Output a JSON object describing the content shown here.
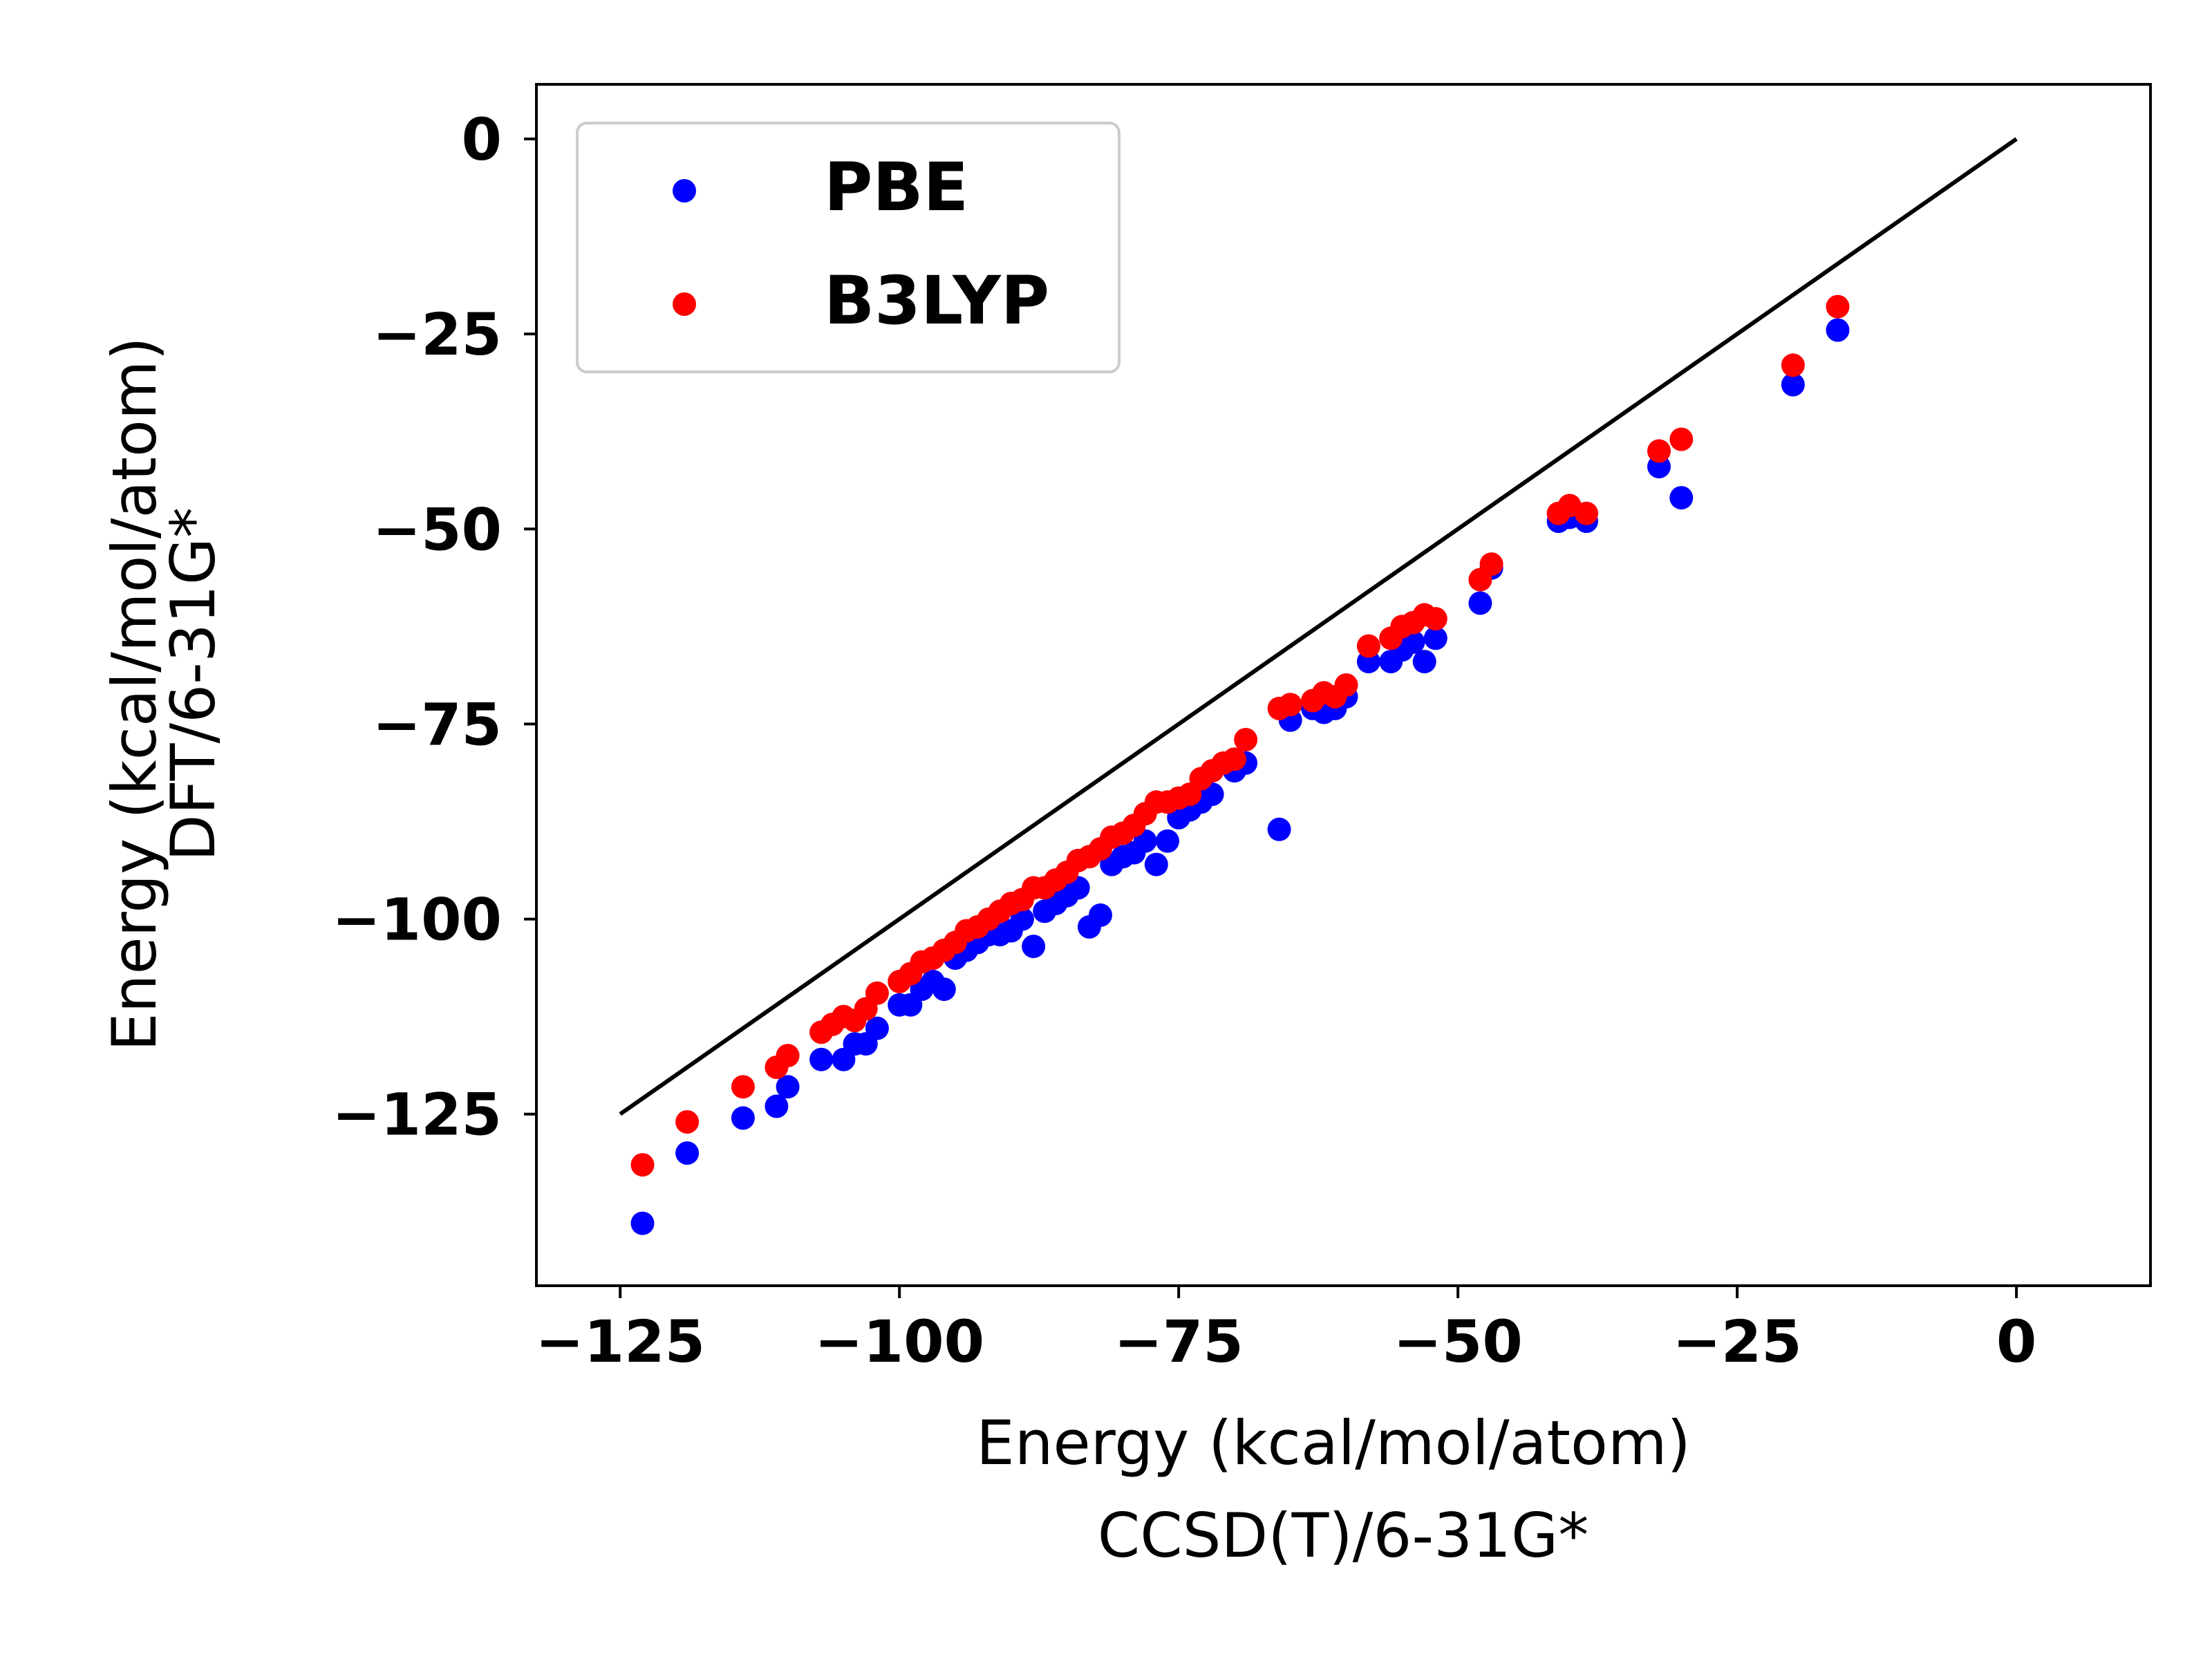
{
  "chart_data": {
    "type": "scatter",
    "xlabel_lines": [
      "Energy (kcal/mol/atom)",
      "CCSD(T)/6-31G*"
    ],
    "ylabel_lines": [
      "Energy (kcal/mol/atom)",
      "DFT/6-31G*"
    ],
    "xlim": [
      -132.5,
      12
    ],
    "ylim": [
      -147,
      7
    ],
    "xticks": [
      -125,
      -100,
      -75,
      -50,
      -25,
      0
    ],
    "yticks": [
      0,
      -25,
      -50,
      -75,
      -100,
      -125
    ],
    "xtick_labels": [
      "−125",
      "−100",
      "−75",
      "−50",
      "−25",
      "0"
    ],
    "ytick_labels": [
      "0",
      "−25",
      "−50",
      "−75",
      "−100",
      "−125"
    ],
    "legend_position": "upper-left",
    "reference_line": {
      "x": [
        -125,
        0
      ],
      "y": [
        -125,
        0
      ],
      "color": "#000000"
    },
    "series": [
      {
        "name": "PBE",
        "color": "#0000ff",
        "points": [
          [
            -123,
            -139
          ],
          [
            -119,
            -130
          ],
          [
            -114,
            -125.5
          ],
          [
            -111,
            -124
          ],
          [
            -110,
            -121.5
          ],
          [
            -107,
            -118
          ],
          [
            -105,
            -118
          ],
          [
            -104,
            -116
          ],
          [
            -103,
            -116
          ],
          [
            -102,
            -114
          ],
          [
            -100,
            -111
          ],
          [
            -99,
            -111
          ],
          [
            -98,
            -109
          ],
          [
            -97,
            -108
          ],
          [
            -96,
            -109
          ],
          [
            -95,
            -105
          ],
          [
            -94,
            -104
          ],
          [
            -93,
            -103
          ],
          [
            -92,
            -102
          ],
          [
            -91,
            -102
          ],
          [
            -90,
            -101.5
          ],
          [
            -89,
            -100
          ],
          [
            -88,
            -103.5
          ],
          [
            -87,
            -99
          ],
          [
            -86,
            -98
          ],
          [
            -85,
            -97
          ],
          [
            -84,
            -96
          ],
          [
            -83,
            -101
          ],
          [
            -82,
            -99.5
          ],
          [
            -81,
            -93
          ],
          [
            -80,
            -92
          ],
          [
            -79,
            -91.5
          ],
          [
            -78,
            -90
          ],
          [
            -77,
            -93
          ],
          [
            -76,
            -90
          ],
          [
            -75,
            -87
          ],
          [
            -74,
            -86
          ],
          [
            -73,
            -85
          ],
          [
            -72,
            -84
          ],
          [
            -70,
            -81
          ],
          [
            -69,
            -80
          ],
          [
            -66,
            -88.5
          ],
          [
            -65,
            -74.5
          ],
          [
            -63,
            -73
          ],
          [
            -62,
            -73.5
          ],
          [
            -61,
            -73
          ],
          [
            -60,
            -71.5
          ],
          [
            -58,
            -67
          ],
          [
            -56,
            -67
          ],
          [
            -55,
            -65.5
          ],
          [
            -54,
            -64.5
          ],
          [
            -53,
            -67
          ],
          [
            -52,
            -64
          ],
          [
            -48,
            -59.5
          ],
          [
            -47,
            -55
          ],
          [
            -41,
            -49
          ],
          [
            -40,
            -48.5
          ],
          [
            -38.5,
            -49
          ],
          [
            -32,
            -42
          ],
          [
            -30,
            -46
          ],
          [
            -20,
            -31.5
          ],
          [
            -16,
            -24.5
          ]
        ]
      },
      {
        "name": "B3LYP",
        "color": "#ff0000",
        "points": [
          [
            -123,
            -131.5
          ],
          [
            -119,
            -126
          ],
          [
            -114,
            -121.5
          ],
          [
            -111,
            -119
          ],
          [
            -110,
            -117.5
          ],
          [
            -107,
            -114.5
          ],
          [
            -106,
            -113.5
          ],
          [
            -105,
            -112.5
          ],
          [
            -104,
            -113
          ],
          [
            -103,
            -111.5
          ],
          [
            -102,
            -109.5
          ],
          [
            -100,
            -108
          ],
          [
            -99,
            -107
          ],
          [
            -98,
            -105.5
          ],
          [
            -97,
            -105
          ],
          [
            -96,
            -104
          ],
          [
            -95,
            -103
          ],
          [
            -94,
            -101.5
          ],
          [
            -93,
            -101
          ],
          [
            -92,
            -100
          ],
          [
            -91,
            -99
          ],
          [
            -90,
            -98
          ],
          [
            -89,
            -97.5
          ],
          [
            -88,
            -96
          ],
          [
            -87,
            -96
          ],
          [
            -86,
            -95
          ],
          [
            -85,
            -94
          ],
          [
            -84,
            -92.5
          ],
          [
            -83,
            -92
          ],
          [
            -82,
            -91
          ],
          [
            -81,
            -89.5
          ],
          [
            -80,
            -89
          ],
          [
            -79,
            -88
          ],
          [
            -78,
            -86.5
          ],
          [
            -77,
            -85
          ],
          [
            -76,
            -85
          ],
          [
            -75,
            -84.5
          ],
          [
            -74,
            -84
          ],
          [
            -73,
            -82
          ],
          [
            -72,
            -81
          ],
          [
            -71,
            -80
          ],
          [
            -70,
            -79.5
          ],
          [
            -69,
            -77
          ],
          [
            -66,
            -73
          ],
          [
            -65,
            -72.5
          ],
          [
            -63,
            -72
          ],
          [
            -62,
            -71
          ],
          [
            -61,
            -71.5
          ],
          [
            -60,
            -70
          ],
          [
            -58,
            -65
          ],
          [
            -56,
            -64
          ],
          [
            -55,
            -62.5
          ],
          [
            -54,
            -62
          ],
          [
            -53,
            -61
          ],
          [
            -52,
            -61.5
          ],
          [
            -48,
            -56.5
          ],
          [
            -47,
            -54.5
          ],
          [
            -41,
            -48
          ],
          [
            -40,
            -47
          ],
          [
            -38.5,
            -48
          ],
          [
            -32,
            -40
          ],
          [
            -30,
            -38.5
          ],
          [
            -20,
            -29
          ],
          [
            -16,
            -21.5
          ]
        ]
      }
    ]
  }
}
